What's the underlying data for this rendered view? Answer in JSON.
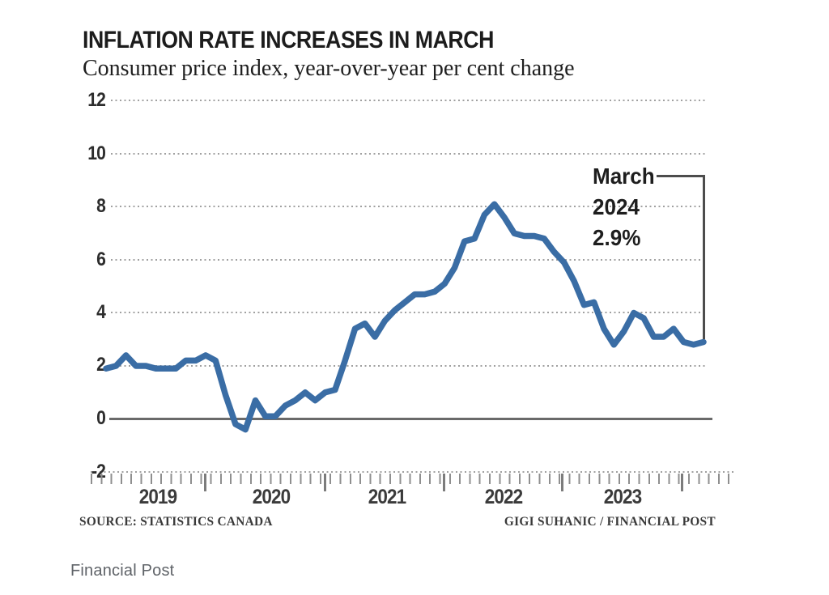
{
  "header": {
    "title": "INFLATION RATE INCREASES IN MARCH",
    "subtitle": "Consumer price index, year-over-year per cent change"
  },
  "annotation": {
    "line1": "March",
    "line2": "2024",
    "line3": "2.9%"
  },
  "footer": {
    "source": "SOURCE: STATISTICS CANADA",
    "credit": "GIGI SUHANIC / FINANCIAL POST",
    "caption": "Financial Post"
  },
  "colors": {
    "line": "#3a6da5",
    "callout": "#4d4d4d",
    "zero_line": "#6a6a6a",
    "grid_dots": "#a0a0a0",
    "title_text": "#1c1c1c",
    "caption_text": "#5f6368"
  },
  "chart_data": {
    "type": "line",
    "title": "INFLATION RATE INCREASES IN MARCH",
    "subtitle": "Consumer price index, year-over-year per cent change",
    "series_name": "Consumer price index, year-over-year per cent change (Canada)",
    "xlabel": "",
    "ylabel": "",
    "ylim": [
      -2,
      12
    ],
    "yticks": [
      12,
      10,
      8,
      6,
      4,
      2,
      0,
      -2
    ],
    "xticklabels": [
      "2019",
      "2020",
      "2021",
      "2022",
      "2023"
    ],
    "grid": "horizontal dotted, solid line at 0",
    "legend": "none",
    "x": [
      "2019-03",
      "2019-04",
      "2019-05",
      "2019-06",
      "2019-07",
      "2019-08",
      "2019-09",
      "2019-10",
      "2019-11",
      "2019-12",
      "2020-01",
      "2020-02",
      "2020-03",
      "2020-04",
      "2020-05",
      "2020-06",
      "2020-07",
      "2020-08",
      "2020-09",
      "2020-10",
      "2020-11",
      "2020-12",
      "2021-01",
      "2021-02",
      "2021-03",
      "2021-04",
      "2021-05",
      "2021-06",
      "2021-07",
      "2021-08",
      "2021-09",
      "2021-10",
      "2021-11",
      "2021-12",
      "2022-01",
      "2022-02",
      "2022-03",
      "2022-04",
      "2022-05",
      "2022-06",
      "2022-07",
      "2022-08",
      "2022-09",
      "2022-10",
      "2022-11",
      "2022-12",
      "2023-01",
      "2023-02",
      "2023-03",
      "2023-04",
      "2023-05",
      "2023-06",
      "2023-07",
      "2023-08",
      "2023-09",
      "2023-10",
      "2023-11",
      "2023-12",
      "2024-01",
      "2024-02",
      "2024-03"
    ],
    "values": [
      1.9,
      2.0,
      2.4,
      2.0,
      2.0,
      1.9,
      1.9,
      1.9,
      2.2,
      2.2,
      2.4,
      2.2,
      0.9,
      -0.2,
      -0.4,
      0.7,
      0.1,
      0.1,
      0.5,
      0.7,
      1.0,
      0.7,
      1.0,
      1.1,
      2.2,
      3.4,
      3.6,
      3.1,
      3.7,
      4.1,
      4.4,
      4.7,
      4.7,
      4.8,
      5.1,
      5.7,
      6.7,
      6.8,
      7.7,
      8.1,
      7.6,
      7.0,
      6.9,
      6.9,
      6.8,
      6.3,
      5.9,
      5.2,
      4.3,
      4.4,
      3.4,
      2.8,
      3.3,
      4.0,
      3.8,
      3.1,
      3.1,
      3.4,
      2.9,
      2.8,
      2.9
    ],
    "annotation": {
      "label": "March 2024",
      "value": "2.9%",
      "x": "2024-03",
      "y": 2.9
    },
    "source": "SOURCE: STATISTICS CANADA",
    "credit": "GIGI SUHANIC / FINANCIAL POST"
  }
}
